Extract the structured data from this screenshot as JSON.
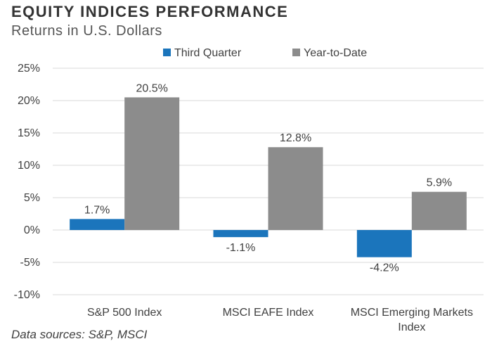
{
  "chart_data": {
    "type": "bar",
    "title": "EQUITY INDICES PERFORMANCE",
    "subtitle": "Returns in U.S. Dollars",
    "categories": [
      [
        "S&P 500 Index"
      ],
      [
        "MSCI EAFE Index"
      ],
      [
        "MSCI Emerging Markets",
        "Index"
      ]
    ],
    "series": [
      {
        "name": "Third Quarter",
        "color": "#1b75bc",
        "values": [
          1.7,
          -1.1,
          -4.2
        ],
        "labels": [
          "1.7%",
          "-1.1%",
          "-4.2%"
        ]
      },
      {
        "name": "Year-to-Date",
        "color": "#8c8c8c",
        "values": [
          20.5,
          12.8,
          5.9
        ],
        "labels": [
          "20.5%",
          "12.8%",
          "5.9%"
        ]
      }
    ],
    "yticks": [
      25,
      20,
      15,
      10,
      5,
      0,
      -5,
      -10
    ],
    "ytick_labels": [
      "25%",
      "20%",
      "15%",
      "10%",
      "5%",
      "0%",
      "-5%",
      "-10%"
    ],
    "ylim": [
      -10,
      25
    ],
    "grid": true,
    "legend": "top-center",
    "source": "Data sources: S&P, MSCI"
  }
}
